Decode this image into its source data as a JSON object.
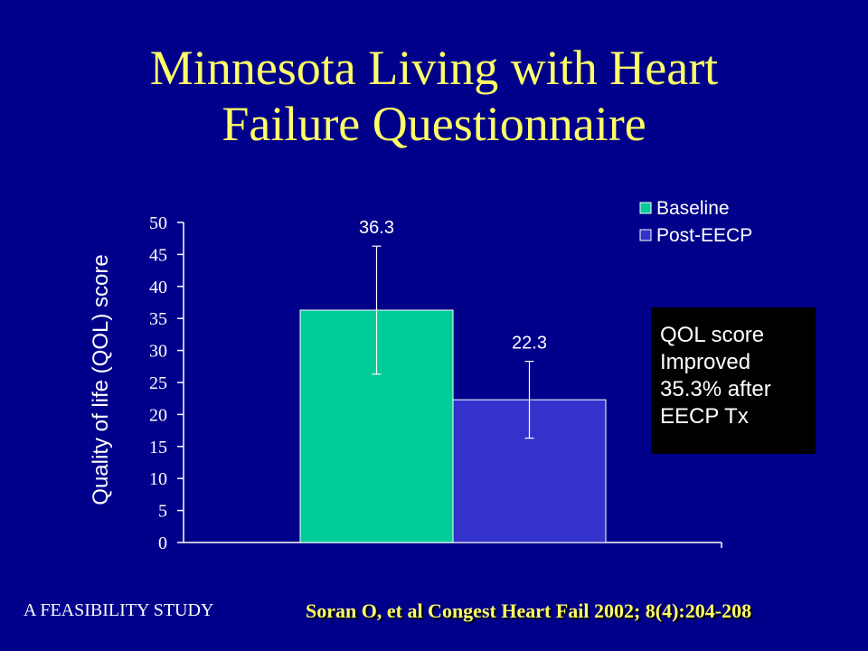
{
  "slide": {
    "title_line1": "Minnesota Living with Heart",
    "title_line2": "Failure Questionnaire",
    "callout": {
      "line1": "QOL score",
      "line2": "Improved",
      "line3": "35.3% after",
      "line4": "EECP Tx"
    },
    "footer_left": "A FEASIBILITY STUDY",
    "footer_right": "Soran O, et al Congest Heart Fail 2002; 8(4):204-208"
  },
  "colors": {
    "background": "#00008b",
    "title": "#ffff66",
    "baseline": "#00cc99",
    "post_eecp": "#3333cc"
  },
  "chart_data": {
    "type": "bar",
    "title": "",
    "xlabel": "",
    "ylabel": "Quality of life (QOL) score",
    "ylim": [
      0,
      50
    ],
    "yticks": [
      0,
      5,
      10,
      15,
      20,
      25,
      30,
      35,
      40,
      45,
      50
    ],
    "grid": false,
    "legend_position": "top-right",
    "series": [
      {
        "name": "Baseline",
        "value": 36.3,
        "label": "36.3",
        "error_low": 26.3,
        "error_high": 46.3,
        "color": "#00cc99"
      },
      {
        "name": "Post-EECP",
        "value": 22.3,
        "label": "22.3",
        "error_low": 16.3,
        "error_high": 28.3,
        "color": "#3333cc"
      }
    ]
  }
}
